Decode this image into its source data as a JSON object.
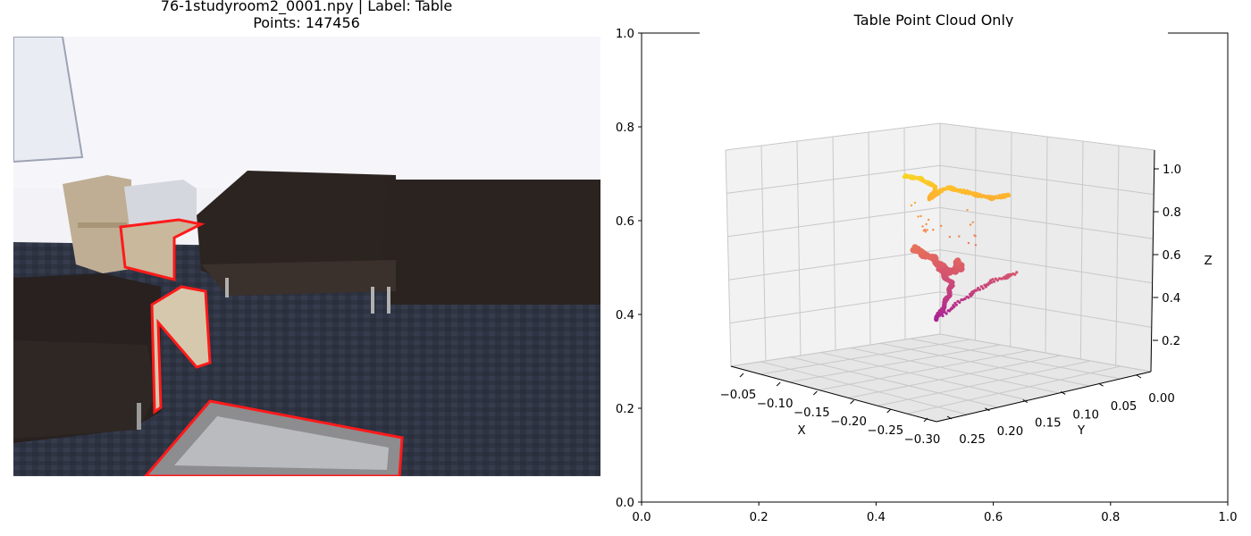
{
  "left_panel": {
    "title": "76-1studyroom2_0001.npy | Label: Table",
    "subtitle": "Points: 147456"
  },
  "right_panel": {
    "title": "Table Point Cloud Only"
  },
  "colors": {
    "highlight": "#ff1a1a",
    "wall": "#efedf3",
    "sofa": "#2d2522",
    "carpet": "#2f3443",
    "pane": "#f2f2f2",
    "grid": "#c8c8c8"
  },
  "chart_data": [
    {
      "type": "line",
      "description_axes": "outer 2D frame",
      "xlim": [
        0,
        1
      ],
      "ylim": [
        0,
        1
      ],
      "xticks": [
        "0.0",
        "0.2",
        "0.4",
        "0.6",
        "0.8",
        "1.0"
      ],
      "yticks": [
        "0.0",
        "0.2",
        "0.4",
        "0.6",
        "0.8",
        "1.0"
      ],
      "series": []
    },
    {
      "type": "scatter",
      "title": "Table Point Cloud Only",
      "xlabel": "X",
      "ylabel": "Y",
      "zlabel": "Z",
      "xlim": [
        -0.03,
        -0.31
      ],
      "ylim": [
        0.27,
        -0.02
      ],
      "zlim": [
        0.1,
        1.05
      ],
      "xticks": [
        "−0.05",
        "−0.10",
        "−0.15",
        "−0.20",
        "−0.25",
        "−0.30"
      ],
      "yticks": [
        "0.25",
        "0.20",
        "0.15",
        "0.10",
        "0.05",
        "0.00"
      ],
      "zticks": [
        "0.2",
        "0.4",
        "0.6",
        "0.8",
        "1.0"
      ],
      "colormap": "plasma",
      "grid": true
    }
  ]
}
